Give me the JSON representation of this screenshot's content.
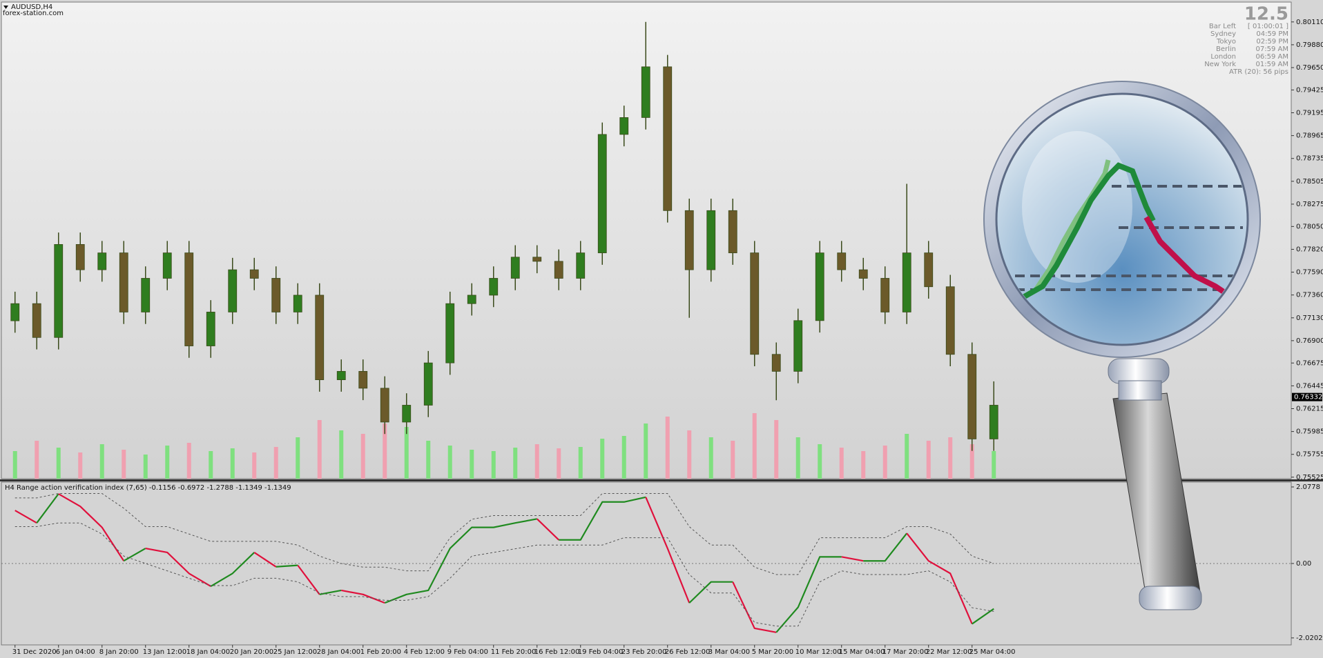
{
  "window": {
    "symbol": "AUDUSD,H4",
    "watermark": "forex-station.com"
  },
  "info_panel": {
    "big": "12.5",
    "rows": [
      [
        "Bar Left",
        "[ 01:00:01 ]"
      ],
      [
        "Sydney",
        "04:59 PM"
      ],
      [
        "Tokyo",
        "02:59 PM"
      ],
      [
        "Berlin",
        "07:59 AM"
      ],
      [
        "London",
        "06:59 AM"
      ],
      [
        "New York",
        "01:59 AM"
      ]
    ],
    "atr": "ATR (20): 56 pips"
  },
  "chart_data": [
    {
      "type": "candlestick",
      "categories": [
        "31 Dec 2020",
        null,
        "6 Jan 04:00",
        null,
        "8 Jan 20:00",
        null,
        "13 Jan 12:00",
        null,
        "18 Jan 04:00",
        null,
        "20 Jan 20:00",
        null,
        "25 Jan 12:00",
        null,
        "28 Jan 04:00",
        null,
        "1 Feb 20:00",
        null,
        "4 Feb 12:00",
        null,
        "9 Feb 04:00",
        null,
        "11 Feb 20:00",
        null,
        "16 Feb 12:00",
        null,
        "19 Feb 04:00",
        null,
        "23 Feb 20:00",
        null,
        "26 Feb 12:00",
        null,
        "3 Mar 04:00",
        null,
        "5 Mar 20:00",
        null,
        "10 Mar 12:00",
        null,
        "15 Mar 04:00",
        null,
        "17 Mar 20:00",
        null,
        "22 Mar 12:00",
        null,
        "25 Mar 04:00",
        null
      ],
      "open": [
        0.771,
        0.77273,
        0.76932,
        0.77869,
        0.77614,
        0.77784,
        0.77188,
        0.77528,
        0.77784,
        0.76847,
        0.77188,
        0.77614,
        0.77528,
        0.77188,
        0.77358,
        0.76506,
        0.76591,
        0.76421,
        0.7608,
        0.7625,
        0.76676,
        0.77273,
        0.77358,
        0.77528,
        0.77741,
        0.77699,
        0.77528,
        0.77784,
        0.78977,
        0.79147,
        0.79658,
        0.7821,
        0.77614,
        0.7821,
        0.77784,
        0.76762,
        0.76591,
        0.77102,
        0.77784,
        0.77614,
        0.77528,
        0.77188,
        0.77784,
        0.77443,
        0.76762,
        0.7591
      ],
      "high": [
        0.77393,
        0.77393,
        0.77989,
        0.77989,
        0.77904,
        0.77904,
        0.77648,
        0.77904,
        0.77904,
        0.77308,
        0.77734,
        0.77734,
        0.77648,
        0.77478,
        0.77478,
        0.76711,
        0.76711,
        0.76541,
        0.7637,
        0.76796,
        0.77393,
        0.77478,
        0.77648,
        0.77861,
        0.77861,
        0.77819,
        0.77904,
        0.79097,
        0.79267,
        0.8011,
        0.79778,
        0.7833,
        0.7833,
        0.7833,
        0.77904,
        0.76882,
        0.77222,
        0.77904,
        0.77904,
        0.77734,
        0.77648,
        0.7848,
        0.77904,
        0.77563,
        0.76882,
        0.7649
      ],
      "low": [
        0.7698,
        0.76812,
        0.76812,
        0.77494,
        0.77494,
        0.77068,
        0.77068,
        0.77408,
        0.76727,
        0.76727,
        0.77068,
        0.77408,
        0.77068,
        0.77068,
        0.76386,
        0.76386,
        0.76301,
        0.7596,
        0.7596,
        0.7613,
        0.76556,
        0.77153,
        0.77238,
        0.77408,
        0.77579,
        0.77408,
        0.77408,
        0.77664,
        0.78857,
        0.79027,
        0.7809,
        0.7713,
        0.77494,
        0.77664,
        0.76642,
        0.763,
        0.76471,
        0.76982,
        0.77494,
        0.77408,
        0.77068,
        0.77068,
        0.77323,
        0.76642,
        0.7579,
        0.7579
      ],
      "close": [
        0.77273,
        0.76932,
        0.77869,
        0.77614,
        0.77784,
        0.77188,
        0.77528,
        0.77784,
        0.76847,
        0.77188,
        0.77614,
        0.77528,
        0.77188,
        0.77358,
        0.76506,
        0.76591,
        0.76421,
        0.7608,
        0.7625,
        0.76676,
        0.77273,
        0.77358,
        0.77528,
        0.77741,
        0.77699,
        0.77528,
        0.77784,
        0.78977,
        0.79147,
        0.79658,
        0.7821,
        0.77614,
        0.7821,
        0.77784,
        0.76762,
        0.76591,
        0.77102,
        0.77784,
        0.77614,
        0.77528,
        0.77188,
        0.77784,
        0.77443,
        0.76762,
        0.7591,
        0.7625
      ],
      "volumes": [
        40,
        55,
        45,
        38,
        50,
        42,
        35,
        48,
        52,
        40,
        44,
        38,
        46,
        60,
        85,
        70,
        65,
        80,
        75,
        55,
        48,
        42,
        40,
        45,
        50,
        44,
        46,
        58,
        62,
        80,
        90,
        70,
        60,
        55,
        95,
        85,
        60,
        50,
        45,
        40,
        48,
        65,
        55,
        60,
        50,
        40
      ],
      "up_color": "#2f7d1f",
      "down_color": "#6b5a2a",
      "wick_color": "#3a4a1a",
      "volume_up_color": "#7fe07f",
      "volume_down_color": "#f0a0b0",
      "ylim": [
        0.7551,
        0.8031
      ],
      "yticks": [
        {
          "value": 0.8011,
          "label": "0.80110"
        },
        {
          "value": 0.7988,
          "label": "0.79880"
        },
        {
          "value": 0.7965,
          "label": "0.79650"
        },
        0.79425,
        0.79195,
        0.78965,
        0.78735,
        0.78505,
        0.78275,
        {
          "value": 0.7805,
          "label": "0.78050"
        },
        {
          "value": 0.7782,
          "label": "0.77820"
        },
        {
          "value": 0.7759,
          "label": "0.77590"
        },
        {
          "value": 0.7736,
          "label": "0.77360"
        },
        {
          "value": 0.7713,
          "label": "0.77130"
        },
        {
          "value": 0.769,
          "label": "0.76900"
        },
        0.76675,
        0.76445,
        0.76215,
        0.75985,
        0.75755,
        0.75525
      ],
      "current_price": 0.76332
    },
    {
      "type": "line",
      "title": "H4 Range action verification index (7,65) -0.1156 -0.6972 -1.2788 -1.1349 -1.1349",
      "series": [
        {
          "values": [
            1.44,
            1.1,
            1.89,
            1.55,
            0.98,
            0.07,
            0.41,
            0.3,
            -0.27,
            -0.62,
            -0.27,
            0.3,
            -0.09,
            -0.05,
            -0.84,
            -0.73,
            -0.84,
            -1.07,
            -0.84,
            -0.73,
            0.41,
            0.98,
            0.98,
            1.1,
            1.21,
            0.64,
            0.64,
            1.67,
            1.67,
            1.8,
            0.41,
            -1.07,
            -0.5,
            -0.5,
            -1.76,
            -1.87,
            -1.19,
            0.18,
            0.18,
            0.07,
            0.07,
            0.82,
            0.07,
            -0.27,
            -1.64,
            -1.23
          ],
          "up_color": "#1f8a1f",
          "down_color": "#e0103c"
        },
        {
          "values": [
            1.78,
            1.78,
            1.9,
            1.9,
            1.9,
            1.5,
            1.0,
            1.0,
            0.8,
            0.6,
            0.6,
            0.6,
            0.6,
            0.5,
            0.2,
            0.0,
            -0.1,
            -0.1,
            -0.2,
            -0.2,
            0.7,
            1.2,
            1.3,
            1.3,
            1.3,
            1.3,
            1.3,
            1.9,
            1.9,
            1.9,
            1.9,
            1.0,
            0.5,
            0.5,
            -0.1,
            -0.3,
            -0.3,
            0.7,
            0.7,
            0.7,
            0.7,
            1.0,
            1.0,
            0.8,
            0.2,
            0.0
          ],
          "color": "#555555",
          "dashed": true
        },
        {
          "values": [
            1.0,
            1.0,
            1.1,
            1.1,
            0.8,
            0.2,
            0.0,
            -0.2,
            -0.4,
            -0.6,
            -0.6,
            -0.4,
            -0.4,
            -0.5,
            -0.8,
            -0.9,
            -0.9,
            -1.0,
            -1.0,
            -0.9,
            -0.4,
            0.2,
            0.3,
            0.4,
            0.5,
            0.5,
            0.5,
            0.5,
            0.7,
            0.7,
            0.7,
            -0.3,
            -0.8,
            -0.8,
            -1.6,
            -1.7,
            -1.7,
            -0.5,
            -0.2,
            -0.3,
            -0.3,
            -0.3,
            -0.2,
            -0.5,
            -1.2,
            -1.3
          ],
          "color": "#555555",
          "dashed": true
        }
      ],
      "levels": [
        0
      ],
      "ylim": [
        -2.21,
        2.19
      ],
      "yticks": [
        2.0778,
        {
          "value": 0,
          "label": "0.00"
        },
        -2.0202
      ]
    }
  ]
}
